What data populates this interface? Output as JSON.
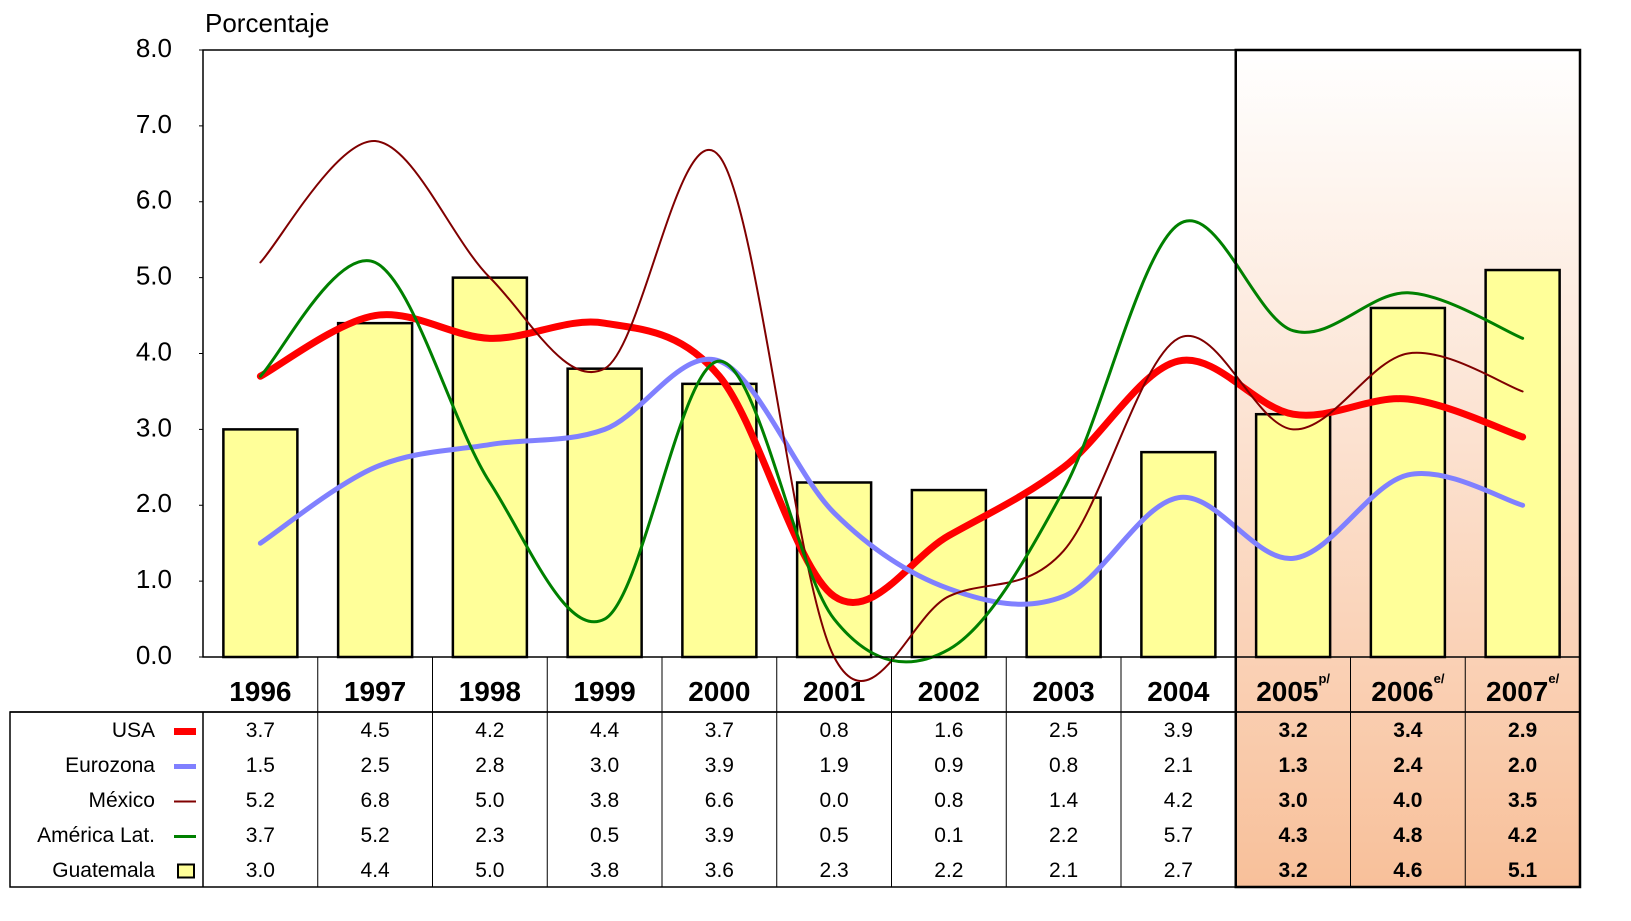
{
  "chart_data": {
    "type": "combo",
    "y_axis_label": "Porcentaje",
    "categories": [
      "1996",
      "1997",
      "1998",
      "1999",
      "2000",
      "2001",
      "2002",
      "2003",
      "2004",
      "2005",
      "2006",
      "2007"
    ],
    "category_notes": [
      null,
      null,
      null,
      null,
      null,
      null,
      null,
      null,
      null,
      "p/",
      "e/",
      "e/"
    ],
    "ylim": [
      0,
      8
    ],
    "yticks": [
      {
        "value": 0,
        "label": "0.0"
      },
      {
        "value": 1,
        "label": "1.0"
      },
      {
        "value": 2,
        "label": "2.0"
      },
      {
        "value": 3,
        "label": "3.0"
      },
      {
        "value": 4,
        "label": "4.0"
      },
      {
        "value": 5,
        "label": "5.0"
      },
      {
        "value": 6,
        "label": "6.0"
      },
      {
        "value": 7,
        "label": "7.0"
      },
      {
        "value": 8,
        "label": "8.0"
      }
    ],
    "grid": false,
    "series": [
      {
        "name": "USA",
        "type": "line",
        "color": "#ff0000",
        "width": 7,
        "values": [
          3.7,
          4.5,
          4.2,
          4.4,
          3.7,
          0.8,
          1.6,
          2.5,
          3.9,
          3.2,
          3.4,
          2.9
        ],
        "value_labels": [
          "3.7",
          "4.5",
          "4.2",
          "4.4",
          "3.7",
          "0.8",
          "1.6",
          "2.5",
          "3.9",
          "3.2",
          "3.4",
          "2.9"
        ]
      },
      {
        "name": "Eurozona",
        "type": "line",
        "color": "#8080ff",
        "width": 5,
        "values": [
          1.5,
          2.5,
          2.8,
          3,
          3.9,
          1.9,
          0.9,
          0.8,
          2.1,
          1.3,
          2.4,
          2
        ],
        "value_labels": [
          "1.5",
          "2.5",
          "2.8",
          "3.0",
          "3.9",
          "1.9",
          "0.9",
          "0.8",
          "2.1",
          "1.3",
          "2.4",
          "2.0"
        ]
      },
      {
        "name": "México",
        "type": "line",
        "color": "#800000",
        "width": 2,
        "values": [
          5.2,
          6.8,
          5,
          3.8,
          6.6,
          0,
          0.8,
          1.4,
          4.2,
          3,
          4,
          3.5
        ],
        "value_labels": [
          "5.2",
          "6.8",
          "5.0",
          "3.8",
          "6.6",
          "0.0",
          "0.8",
          "1.4",
          "4.2",
          "3.0",
          "4.0",
          "3.5"
        ]
      },
      {
        "name": "América Lat.",
        "type": "line",
        "color": "#008000",
        "width": 3,
        "values": [
          3.7,
          5.2,
          2.3,
          0.5,
          3.9,
          0.5,
          0.1,
          2.2,
          5.7,
          4.3,
          4.8,
          4.2
        ],
        "value_labels": [
          "3.7",
          "5.2",
          "2.3",
          "0.5",
          "3.9",
          "0.5",
          "0.1",
          "2.2",
          "5.7",
          "4.3",
          "4.8",
          "4.2"
        ]
      },
      {
        "name": "Guatemala",
        "type": "bar",
        "color": "#ffff99",
        "values": [
          3,
          4.4,
          5,
          3.8,
          3.6,
          2.3,
          2.2,
          2.1,
          2.7,
          3.2,
          4.6,
          5.1
        ],
        "value_labels": [
          "3.0",
          "4.4",
          "5.0",
          "3.8",
          "3.6",
          "2.3",
          "2.2",
          "2.1",
          "2.7",
          "3.2",
          "4.6",
          "5.1"
        ]
      }
    ],
    "forecast_start_index": 9,
    "forecast_color": "#f8c09a"
  }
}
